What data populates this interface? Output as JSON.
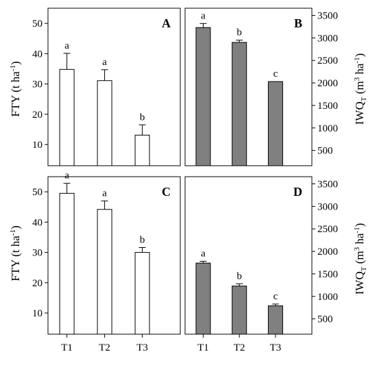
{
  "figure": {
    "y_left_label": "FTY (t ha",
    "y_left_sup": "-1",
    "y_left_close": ")",
    "y_right_label": "IWQ",
    "y_right_sub": "T",
    "y_right_unit": " (m",
    "y_right_sup1": "3",
    "y_right_unit2": " ha",
    "y_right_sup2": "-1",
    "y_right_close": ")",
    "bar_color_light": "#ffffff",
    "bar_color_dark": "#808080"
  },
  "chart_data": [
    {
      "panel": "A",
      "type": "bar",
      "categories": [
        "T1",
        "T2",
        "T3"
      ],
      "values": [
        34.8,
        31.1,
        13.1
      ],
      "errors": [
        5.3,
        3.6,
        3.4
      ],
      "significance": [
        "a",
        "a",
        "b"
      ],
      "ylim": [
        3,
        55
      ],
      "yticks": [
        10,
        20,
        30,
        40,
        50
      ],
      "axis_side": "left",
      "bar_style": "light"
    },
    {
      "panel": "B",
      "type": "bar",
      "categories": [
        "T1",
        "T2",
        "T3"
      ],
      "values": [
        3230,
        2900,
        2030
      ],
      "errors": [
        90,
        50,
        0
      ],
      "significance": [
        "a",
        "b",
        "c"
      ],
      "ylim": [
        160,
        3660
      ],
      "yticks": [
        500,
        1000,
        1500,
        2000,
        2500,
        3000,
        3500
      ],
      "axis_side": "right",
      "bar_style": "dark"
    },
    {
      "panel": "C",
      "type": "bar",
      "categories": [
        "T1",
        "T2",
        "T3"
      ],
      "values": [
        49.5,
        44.2,
        30.0
      ],
      "errors": [
        3.3,
        2.8,
        1.6
      ],
      "significance": [
        "a",
        "a",
        "b"
      ],
      "ylim": [
        3,
        55
      ],
      "yticks": [
        10,
        20,
        30,
        40,
        50
      ],
      "axis_side": "left",
      "bar_style": "light"
    },
    {
      "panel": "D",
      "type": "bar",
      "categories": [
        "T1",
        "T2",
        "T3"
      ],
      "values": [
        1740,
        1230,
        790
      ],
      "errors": [
        40,
        50,
        40
      ],
      "significance": [
        "a",
        "b",
        "c"
      ],
      "ylim": [
        160,
        3660
      ],
      "yticks": [
        500,
        1000,
        1500,
        2000,
        2500,
        3000,
        3500
      ],
      "axis_side": "right",
      "bar_style": "dark"
    }
  ]
}
